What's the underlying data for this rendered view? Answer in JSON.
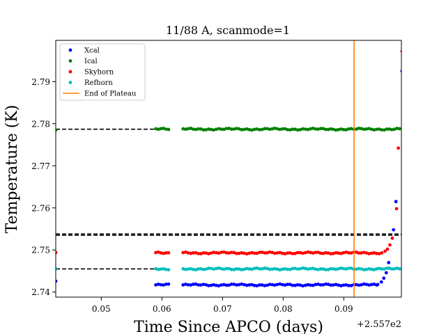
{
  "chart_data": {
    "type": "scatter",
    "title": "11/88 A, scanmode=1",
    "xlabel": "Time Since APCO (days)",
    "ylabel": "Temperature (K)",
    "offset_label": "+2.557e2",
    "xlim": [
      0.0425,
      0.0995
    ],
    "ylim": [
      2.7388,
      2.7998
    ],
    "xticks": [
      0.05,
      0.06,
      0.07,
      0.08,
      0.09
    ],
    "xtick_labels": [
      "0.05",
      "0.06",
      "0.07",
      "0.08",
      "0.09"
    ],
    "yticks": [
      2.74,
      2.75,
      2.76,
      2.77,
      2.78,
      2.79
    ],
    "ytick_labels": [
      "2.74",
      "2.75",
      "2.76",
      "2.77",
      "2.78",
      "2.79"
    ],
    "legend_position": "top-left",
    "grid": false,
    "series": [
      {
        "name": "Xcal",
        "color": "#0000ff",
        "base": 2.7417,
        "segments": [
          [
            0.059,
            0.0612
          ],
          [
            0.0635,
            0.0955
          ]
        ],
        "points": [
          [
            0.0425,
            2.7426
          ],
          [
            0.0956,
            2.7418
          ],
          [
            0.0962,
            2.7424
          ],
          [
            0.0966,
            2.7433
          ],
          [
            0.097,
            2.7446
          ],
          [
            0.0974,
            2.747
          ],
          [
            0.0982,
            2.7548
          ],
          [
            0.0986,
            2.7615
          ],
          [
            0.0996,
            2.7925
          ]
        ]
      },
      {
        "name": "Ical",
        "color": "#008000",
        "base": 2.7787,
        "segments": [
          [
            0.059,
            0.0612
          ],
          [
            0.0635,
            0.0995
          ]
        ],
        "points": [
          [
            0.0425,
            2.7785
          ]
        ]
      },
      {
        "name": "Skyhorn",
        "color": "#ff0000",
        "base": 2.7493,
        "segments": [
          [
            0.059,
            0.0612
          ],
          [
            0.0635,
            0.0965
          ]
        ],
        "points": [
          [
            0.0425,
            2.7494
          ],
          [
            0.0968,
            2.7497
          ],
          [
            0.0972,
            2.7502
          ],
          [
            0.0976,
            2.7512
          ],
          [
            0.098,
            2.7528
          ],
          [
            0.0987,
            2.7598
          ],
          [
            0.099,
            2.7742
          ],
          [
            0.0996,
            2.7972
          ]
        ]
      },
      {
        "name": "Refhorn",
        "color": "#00bfbf",
        "base": 2.7455,
        "segments": [
          [
            0.059,
            0.0612
          ],
          [
            0.0635,
            0.0995
          ]
        ],
        "points": [
          [
            0.0425,
            2.7455
          ]
        ]
      }
    ],
    "reference_lines": [
      {
        "style": "dashed",
        "y": 2.7787,
        "x_start": 0.0425,
        "x_end": 0.0995,
        "gap": [
          0.0612,
          0.0635
        ]
      },
      {
        "style": "dashed",
        "y": 2.7455,
        "x_start": 0.0425,
        "x_end": 0.0995,
        "gap": [
          0.0612,
          0.0635
        ]
      },
      {
        "style": "dashed",
        "y": 2.7535,
        "x_start": 0.0425,
        "x_end": 0.0995,
        "gap": null
      },
      {
        "style": "dashed",
        "y": 2.7538,
        "x_start": 0.0425,
        "x_end": 0.0995,
        "gap": null
      }
    ],
    "vertical_line": {
      "name": "End of Plateau",
      "x": 0.0917,
      "color": "#ff7f0e"
    }
  }
}
